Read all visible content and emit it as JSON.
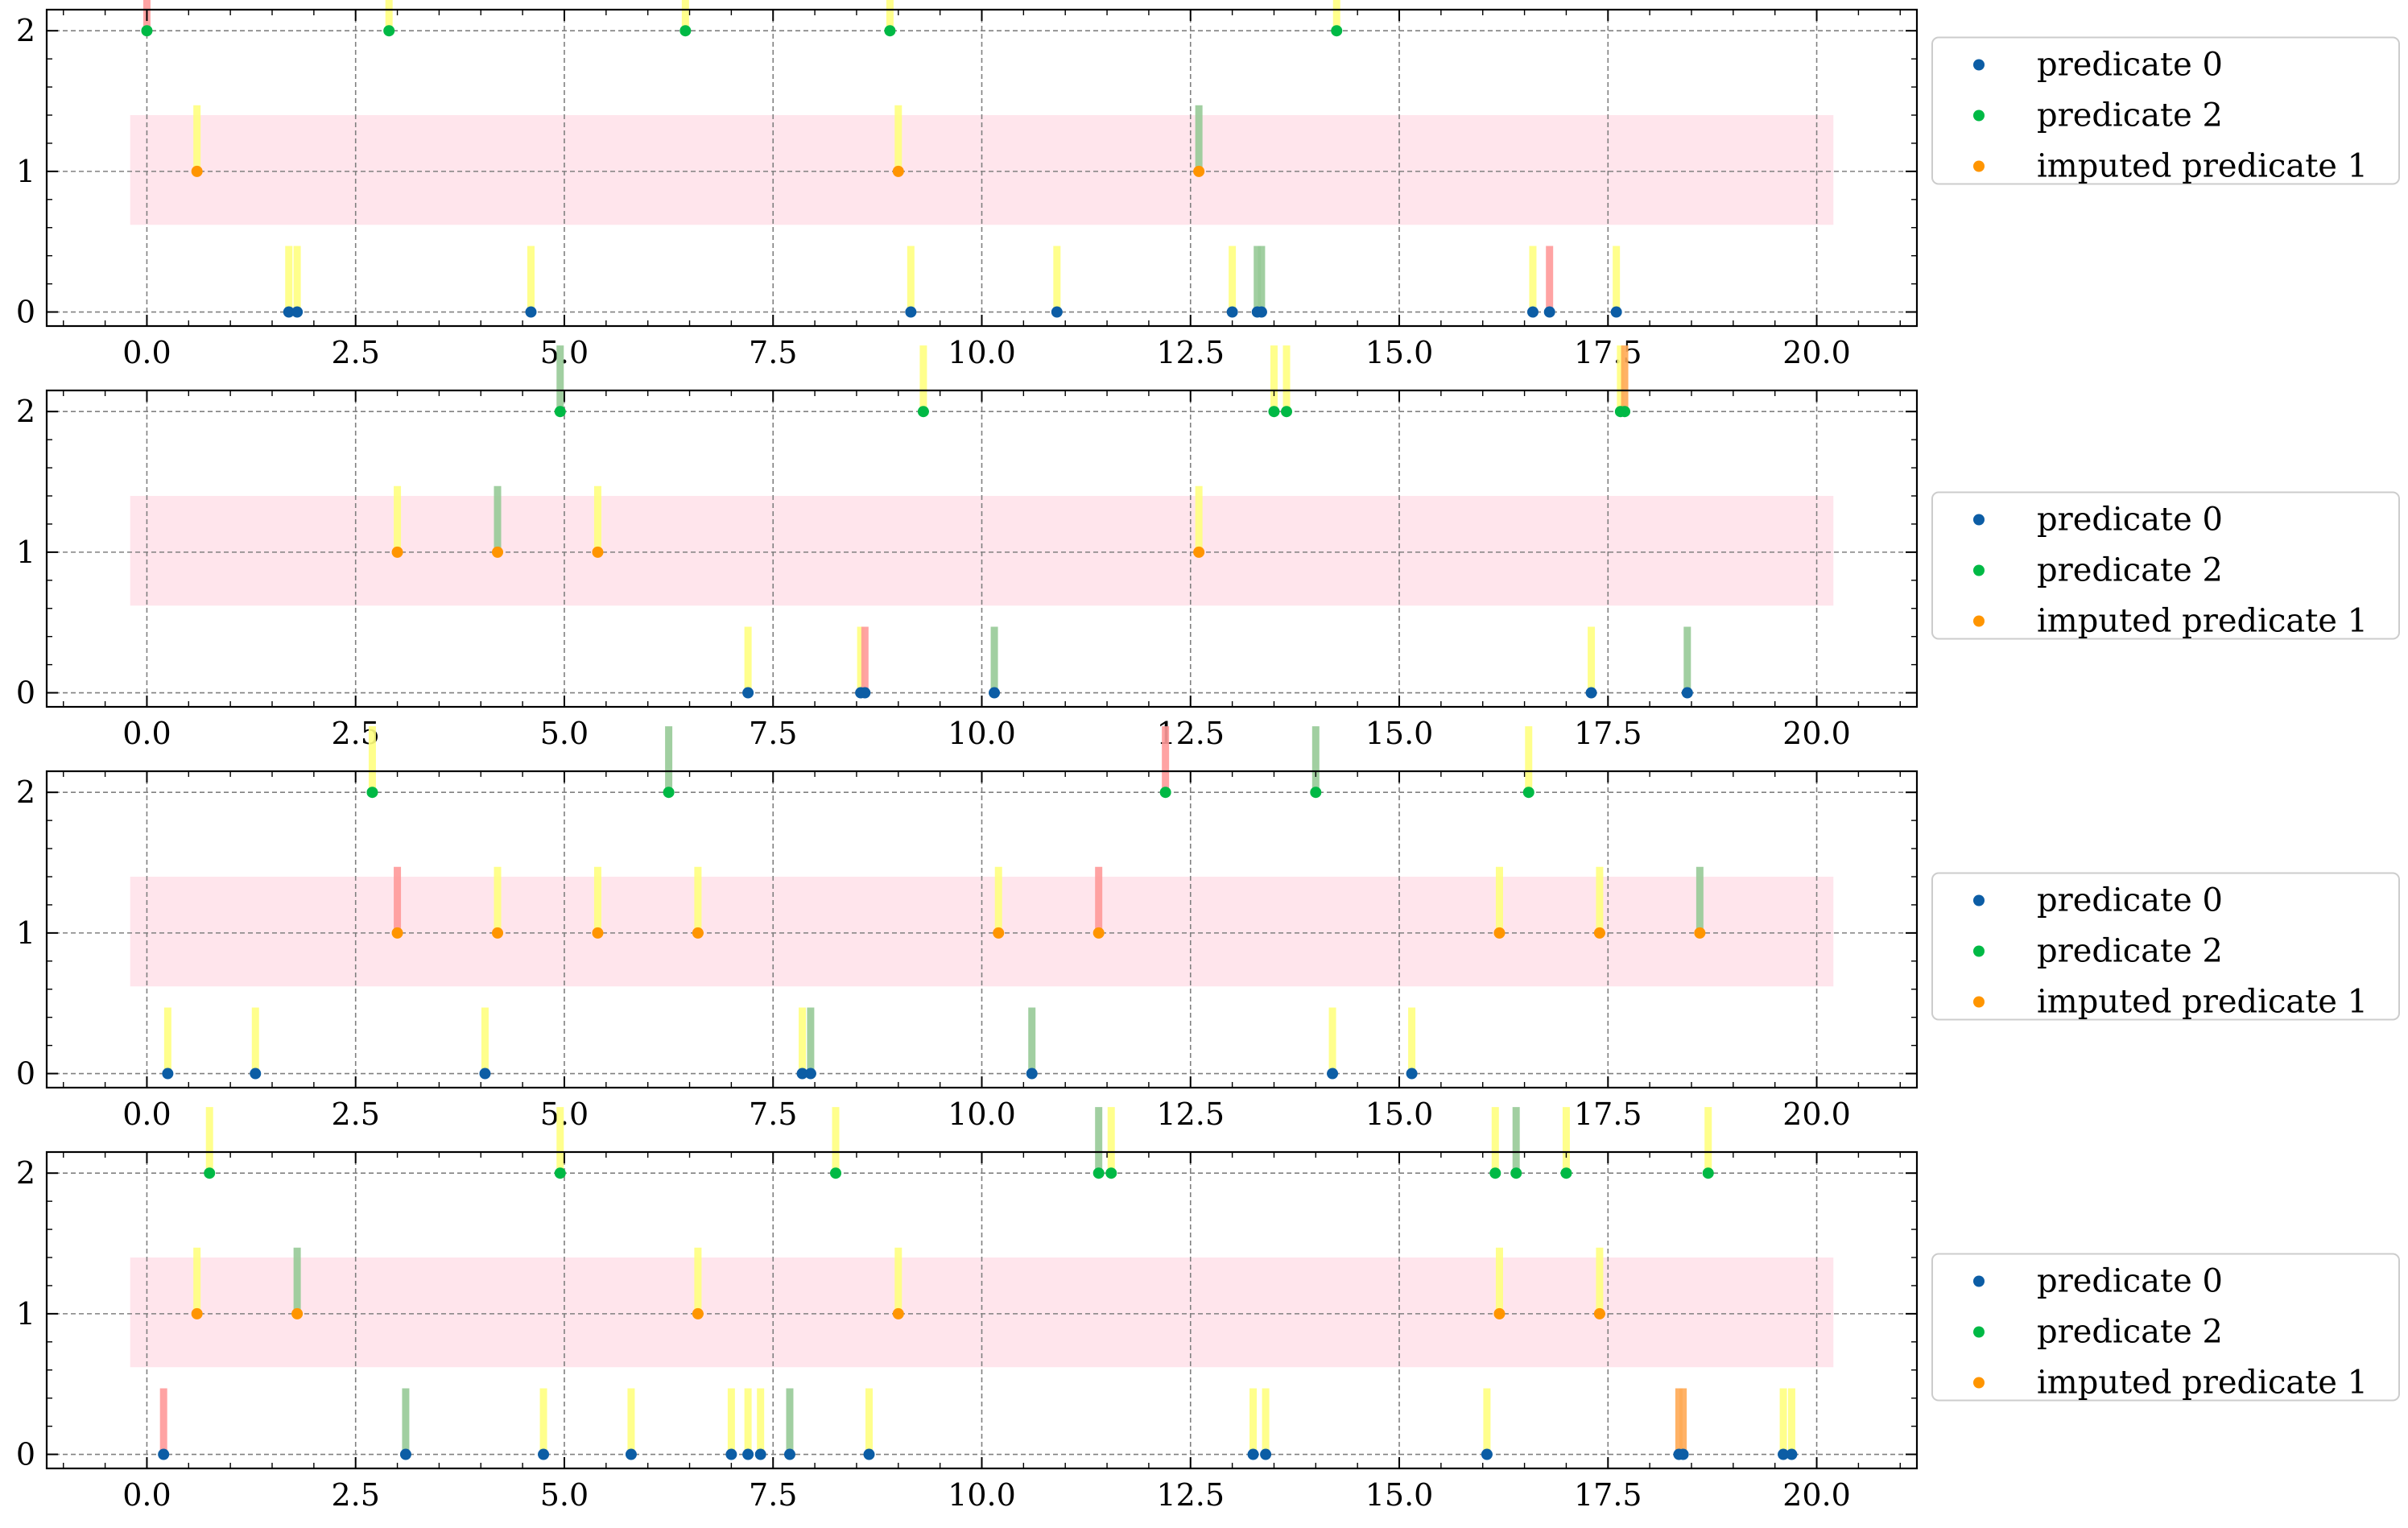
{
  "colors": {
    "predicate_0": "#0c5da5",
    "predicate_2": "#00b945",
    "imputed_predicate_1": "#ff9500",
    "band": "#ffe5ec",
    "tick_yellow": "#ffff80",
    "tick_green": "#97ca97",
    "tick_red": "#ff9999",
    "tick_orange": "#ffaa55",
    "grid": "#808080"
  },
  "chart_data": [
    {
      "type": "scatter",
      "xlim": [
        -1.2,
        21.2
      ],
      "ylim": [
        -0.1,
        2.15
      ],
      "xticks": [
        0.0,
        2.5,
        5.0,
        7.5,
        10.0,
        12.5,
        15.0,
        17.5,
        20.0
      ],
      "xtick_labels": [
        "0.0",
        "2.5",
        "5.0",
        "7.5",
        "10.0",
        "12.5",
        "15.0",
        "17.5",
        "20.0"
      ],
      "yticks": [
        0,
        1,
        2
      ],
      "ytick_labels": [
        "0",
        "1",
        "2"
      ],
      "grid": true,
      "legend_position": "outside-right",
      "band": {
        "y0": 0.62,
        "y1": 1.4,
        "x0": -0.2,
        "x1": 20.2
      },
      "series": [
        {
          "name": "predicate 0",
          "y": 0,
          "x": [
            1.7,
            1.8,
            4.6,
            9.15,
            10.9,
            13.0,
            13.3,
            13.35,
            16.6,
            16.8,
            17.6
          ],
          "tick_colors": [
            "yellow",
            "yellow",
            "yellow",
            "yellow",
            "yellow",
            "yellow",
            "green",
            "green",
            "yellow",
            "red",
            "yellow"
          ]
        },
        {
          "name": "predicate 2",
          "y": 2,
          "x": [
            0.0,
            2.9,
            6.45,
            8.9,
            14.25
          ],
          "tick_colors": [
            "red",
            "yellow",
            "yellow",
            "yellow",
            "yellow"
          ]
        },
        {
          "name": "imputed predicate 1",
          "y": 1,
          "x": [
            0.6,
            9.0,
            12.6
          ],
          "tick_colors": [
            "yellow",
            "yellow",
            "green"
          ]
        }
      ]
    },
    {
      "type": "scatter",
      "xlim": [
        -1.2,
        21.2
      ],
      "ylim": [
        -0.1,
        2.15
      ],
      "xticks": [
        0.0,
        2.5,
        5.0,
        7.5,
        10.0,
        12.5,
        15.0,
        17.5,
        20.0
      ],
      "xtick_labels": [
        "0.0",
        "2.5",
        "5.0",
        "7.5",
        "10.0",
        "12.5",
        "15.0",
        "17.5",
        "20.0"
      ],
      "yticks": [
        0,
        1,
        2
      ],
      "ytick_labels": [
        "0",
        "1",
        "2"
      ],
      "grid": true,
      "legend_position": "outside-right",
      "band": {
        "y0": 0.62,
        "y1": 1.4,
        "x0": -0.2,
        "x1": 20.2
      },
      "series": [
        {
          "name": "predicate 0",
          "y": 0,
          "x": [
            7.2,
            8.55,
            8.6,
            10.15,
            17.3,
            18.45
          ],
          "tick_colors": [
            "yellow",
            "yellow",
            "red",
            "green",
            "yellow",
            "green"
          ]
        },
        {
          "name": "predicate 2",
          "y": 2,
          "x": [
            4.95,
            9.3,
            13.5,
            13.65,
            17.65,
            17.7
          ],
          "tick_colors": [
            "green",
            "yellow",
            "yellow",
            "yellow",
            "yellow",
            "orange"
          ]
        },
        {
          "name": "imputed predicate 1",
          "y": 1,
          "x": [
            3.0,
            4.2,
            5.4,
            12.6
          ],
          "tick_colors": [
            "yellow",
            "green",
            "yellow",
            "yellow"
          ]
        }
      ]
    },
    {
      "type": "scatter",
      "xlim": [
        -1.2,
        21.2
      ],
      "ylim": [
        -0.1,
        2.15
      ],
      "xticks": [
        0.0,
        2.5,
        5.0,
        7.5,
        10.0,
        12.5,
        15.0,
        17.5,
        20.0
      ],
      "xtick_labels": [
        "0.0",
        "2.5",
        "5.0",
        "7.5",
        "10.0",
        "12.5",
        "15.0",
        "17.5",
        "20.0"
      ],
      "yticks": [
        0,
        1,
        2
      ],
      "ytick_labels": [
        "0",
        "1",
        "2"
      ],
      "grid": true,
      "legend_position": "outside-right",
      "band": {
        "y0": 0.62,
        "y1": 1.4,
        "x0": -0.2,
        "x1": 20.2
      },
      "series": [
        {
          "name": "predicate 0",
          "y": 0,
          "x": [
            0.25,
            1.3,
            4.05,
            7.85,
            7.95,
            10.6,
            14.2,
            15.15
          ],
          "tick_colors": [
            "yellow",
            "yellow",
            "yellow",
            "yellow",
            "green",
            "green",
            "yellow",
            "yellow"
          ]
        },
        {
          "name": "predicate 2",
          "y": 2,
          "x": [
            2.7,
            6.25,
            12.2,
            14.0,
            16.55
          ],
          "tick_colors": [
            "yellow",
            "green",
            "red",
            "green",
            "yellow"
          ]
        },
        {
          "name": "imputed predicate 1",
          "y": 1,
          "x": [
            3.0,
            4.2,
            5.4,
            6.6,
            10.2,
            11.4,
            16.2,
            17.4,
            18.6
          ],
          "tick_colors": [
            "red",
            "yellow",
            "yellow",
            "yellow",
            "yellow",
            "red",
            "yellow",
            "yellow",
            "green"
          ]
        }
      ]
    },
    {
      "type": "scatter",
      "xlim": [
        -1.2,
        21.2
      ],
      "ylim": [
        -0.1,
        2.15
      ],
      "xticks": [
        0.0,
        2.5,
        5.0,
        7.5,
        10.0,
        12.5,
        15.0,
        17.5,
        20.0
      ],
      "xtick_labels": [
        "0.0",
        "2.5",
        "5.0",
        "7.5",
        "10.0",
        "12.5",
        "15.0",
        "17.5",
        "20.0"
      ],
      "yticks": [
        0,
        1,
        2
      ],
      "ytick_labels": [
        "0",
        "1",
        "2"
      ],
      "grid": true,
      "legend_position": "outside-right",
      "band": {
        "y0": 0.62,
        "y1": 1.4,
        "x0": -0.2,
        "x1": 20.2
      },
      "series": [
        {
          "name": "predicate 0",
          "y": 0,
          "x": [
            0.2,
            3.1,
            4.75,
            5.8,
            7.0,
            7.2,
            7.35,
            7.7,
            8.65,
            13.25,
            13.4,
            16.05,
            18.35,
            18.4,
            19.6,
            19.7
          ],
          "tick_colors": [
            "red",
            "green",
            "yellow",
            "yellow",
            "yellow",
            "yellow",
            "yellow",
            "green",
            "yellow",
            "yellow",
            "yellow",
            "yellow",
            "orange",
            "orange",
            "yellow",
            "yellow"
          ]
        },
        {
          "name": "predicate 2",
          "y": 2,
          "x": [
            0.75,
            4.95,
            8.25,
            11.4,
            11.55,
            16.15,
            16.4,
            17.0,
            18.7
          ],
          "tick_colors": [
            "yellow",
            "yellow",
            "yellow",
            "green",
            "yellow",
            "yellow",
            "green",
            "yellow",
            "yellow"
          ]
        },
        {
          "name": "imputed predicate 1",
          "y": 1,
          "x": [
            0.6,
            1.8,
            6.6,
            9.0,
            16.2,
            17.4
          ],
          "tick_colors": [
            "yellow",
            "green",
            "yellow",
            "yellow",
            "yellow",
            "yellow"
          ]
        }
      ]
    }
  ]
}
